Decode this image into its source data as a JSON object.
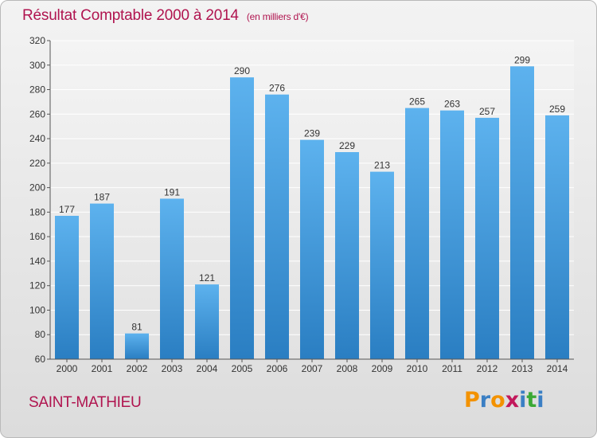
{
  "title": "Résultat Comptable 2000 à 2014",
  "subtitle": "(en milliers d'€)",
  "commune": "SAINT-MATHIEU",
  "brand": {
    "letters": [
      "P",
      "r",
      "o",
      "x",
      "i",
      "t",
      "i"
    ],
    "colors": [
      "#f39200",
      "#3a7fc4",
      "#f39200",
      "#c2185b",
      "#3a7fc4",
      "#3ba935",
      "#3a7fc4"
    ]
  },
  "colors": {
    "bar_light": "#5db2ee",
    "bar_dark": "#2a7ec2",
    "title": "#b0144f"
  },
  "chart_data": {
    "type": "bar",
    "categories": [
      "2000",
      "2001",
      "2002",
      "2003",
      "2004",
      "2005",
      "2006",
      "2007",
      "2008",
      "2009",
      "2010",
      "2011",
      "2012",
      "2013",
      "2014"
    ],
    "values": [
      177,
      187,
      81,
      191,
      121,
      290,
      276,
      239,
      229,
      213,
      265,
      263,
      257,
      299,
      259
    ],
    "title": "Résultat Comptable 2000 à 2014",
    "subtitle": "(en milliers d'€)",
    "xlabel": "",
    "ylabel": "",
    "ylim": [
      60,
      320
    ],
    "yticks": [
      60,
      80,
      100,
      120,
      140,
      160,
      180,
      200,
      220,
      240,
      260,
      280,
      300,
      320
    ],
    "grid": true,
    "data_labels": true
  }
}
